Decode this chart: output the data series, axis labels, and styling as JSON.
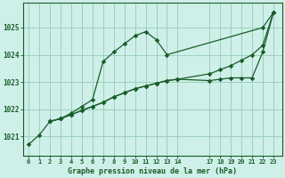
{
  "title": "Graphe pression niveau de la mer (hPa)",
  "bg_color": "#cef0e8",
  "grid_color": "#9dcfbf",
  "line_color": "#1a5c2a",
  "ylim": [
    1020.3,
    1025.9
  ],
  "yticks": [
    1021,
    1022,
    1023,
    1024,
    1025
  ],
  "xticks": [
    0,
    1,
    2,
    3,
    4,
    5,
    6,
    7,
    8,
    9,
    10,
    11,
    12,
    13,
    14,
    17,
    18,
    19,
    20,
    21,
    22,
    23
  ],
  "series": [
    {
      "x": [
        0,
        1,
        2,
        3,
        4,
        5,
        6,
        7,
        8,
        9,
        10,
        11,
        12,
        13,
        22,
        23
      ],
      "y": [
        1020.7,
        1021.05,
        1021.55,
        1021.65,
        1021.85,
        1022.1,
        1022.35,
        1023.75,
        1024.1,
        1024.4,
        1024.7,
        1024.85,
        1024.55,
        1024.0,
        1025.0,
        1025.55
      ]
    },
    {
      "x": [
        2,
        3,
        4,
        5,
        6,
        7,
        8,
        9,
        10,
        11,
        12,
        13,
        14,
        17,
        18,
        19,
        20,
        21,
        22,
        23
      ],
      "y": [
        1021.55,
        1021.65,
        1021.8,
        1021.95,
        1022.1,
        1022.25,
        1022.45,
        1022.6,
        1022.75,
        1022.85,
        1022.95,
        1023.05,
        1023.1,
        1023.3,
        1023.45,
        1023.6,
        1023.8,
        1024.0,
        1024.35,
        1025.55
      ]
    },
    {
      "x": [
        2,
        3,
        4,
        5,
        6,
        7,
        8,
        9,
        10,
        11,
        12,
        13,
        14,
        17,
        18,
        19,
        20,
        21,
        22,
        23
      ],
      "y": [
        1021.55,
        1021.65,
        1021.8,
        1021.95,
        1022.1,
        1022.25,
        1022.45,
        1022.6,
        1022.75,
        1022.85,
        1022.95,
        1023.05,
        1023.1,
        1023.05,
        1023.1,
        1023.15,
        1023.15,
        1023.15,
        1024.1,
        1025.55
      ]
    }
  ]
}
